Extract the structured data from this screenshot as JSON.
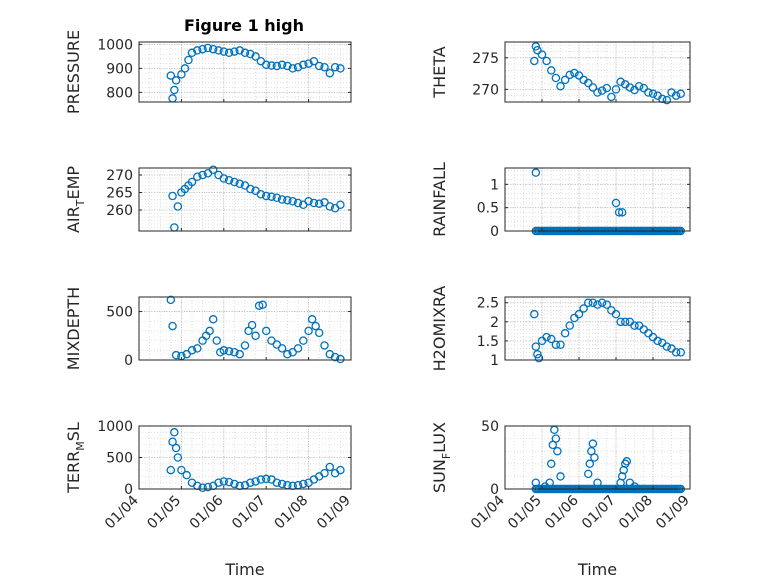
{
  "figure": {
    "title": "Figure 1 high",
    "marker_color": "#0072bd",
    "grid": "on (major and minor, dotted)"
  },
  "chart_data": [
    {
      "type": "scatter",
      "ylabel": "PRESSURE",
      "title": "Figure 1 high",
      "xlim": [
        "01/04",
        "01/09"
      ],
      "ylim": [
        760,
        1010
      ],
      "yticks": [
        800,
        900,
        1000
      ],
      "show_xticklabels": false,
      "x": [
        "01/04 18:00",
        "01/04 19:00",
        "01/04 20:00",
        "01/04 21:00",
        "01/05 00:00",
        "01/05 02:00",
        "01/05 04:00",
        "01/05 06:00",
        "01/05 09:00",
        "01/05 12:00",
        "01/05 15:00",
        "01/05 18:00",
        "01/05 21:00",
        "01/06 00:00",
        "01/06 03:00",
        "01/06 06:00",
        "01/06 09:00",
        "01/06 12:00",
        "01/06 15:00",
        "01/06 18:00",
        "01/06 21:00",
        "01/07 00:00",
        "01/07 03:00",
        "01/07 06:00",
        "01/07 09:00",
        "01/07 12:00",
        "01/07 15:00",
        "01/07 18:00",
        "01/07 21:00",
        "01/08 00:00",
        "01/08 03:00",
        "01/08 06:00",
        "01/08 09:00",
        "01/08 12:00",
        "01/08 15:00",
        "01/08 18:00"
      ],
      "y": [
        870,
        775,
        810,
        850,
        875,
        900,
        935,
        965,
        975,
        980,
        985,
        980,
        975,
        970,
        965,
        970,
        975,
        965,
        960,
        950,
        930,
        915,
        912,
        910,
        915,
        910,
        900,
        905,
        915,
        920,
        930,
        910,
        905,
        880,
        905,
        900
      ]
    },
    {
      "type": "scatter",
      "ylabel": "THETA",
      "xlim": [
        "01/04",
        "01/09"
      ],
      "ylim": [
        268,
        277.5
      ],
      "yticks": [
        270,
        275
      ],
      "show_xticklabels": false,
      "x": [
        "01/04 19:00",
        "01/04 20:00",
        "01/04 21:00",
        "01/05 00:00",
        "01/05 03:00",
        "01/05 06:00",
        "01/05 09:00",
        "01/05 12:00",
        "01/05 15:00",
        "01/05 18:00",
        "01/05 21:00",
        "01/06 00:00",
        "01/06 03:00",
        "01/06 06:00",
        "01/06 09:00",
        "01/06 12:00",
        "01/06 15:00",
        "01/06 18:00",
        "01/06 21:00",
        "01/07 00:00",
        "01/07 03:00",
        "01/07 06:00",
        "01/07 09:00",
        "01/07 12:00",
        "01/07 15:00",
        "01/07 18:00",
        "01/07 21:00",
        "01/08 00:00",
        "01/08 03:00",
        "01/08 06:00",
        "01/08 09:00",
        "01/08 12:00",
        "01/08 15:00",
        "01/08 18:00"
      ],
      "y": [
        274.5,
        276.8,
        276.2,
        275.5,
        274.5,
        273.0,
        271.8,
        270.5,
        271.5,
        272.3,
        272.6,
        272.2,
        271.5,
        271.0,
        270.3,
        269.5,
        269.8,
        270.2,
        268.8,
        270.0,
        271.2,
        270.8,
        270.3,
        269.9,
        270.5,
        270.2,
        269.5,
        269.3,
        269.0,
        268.5,
        268.3,
        269.5,
        269.0,
        269.3
      ]
    },
    {
      "type": "scatter",
      "ylabel": "AIR_TEMP",
      "xlim": [
        "01/04",
        "01/09"
      ],
      "ylim": [
        254,
        272
      ],
      "yticks": [
        260,
        265,
        270
      ],
      "show_xticklabels": false,
      "x": [
        "01/04 19:00",
        "01/04 20:00",
        "01/04 22:00",
        "01/05 00:00",
        "01/05 02:00",
        "01/05 04:00",
        "01/05 06:00",
        "01/05 09:00",
        "01/05 12:00",
        "01/05 15:00",
        "01/05 18:00",
        "01/05 21:00",
        "01/06 00:00",
        "01/06 03:00",
        "01/06 06:00",
        "01/06 09:00",
        "01/06 12:00",
        "01/06 15:00",
        "01/06 18:00",
        "01/06 21:00",
        "01/07 00:00",
        "01/07 03:00",
        "01/07 06:00",
        "01/07 09:00",
        "01/07 12:00",
        "01/07 15:00",
        "01/07 18:00",
        "01/07 21:00",
        "01/08 00:00",
        "01/08 03:00",
        "01/08 06:00",
        "01/08 09:00",
        "01/08 12:00",
        "01/08 15:00",
        "01/08 18:00"
      ],
      "y": [
        264,
        255,
        261,
        265,
        266,
        267,
        268,
        269.5,
        270,
        270.5,
        271.5,
        270,
        269,
        268.5,
        268,
        267.5,
        267,
        266,
        265.5,
        264.5,
        264,
        263.8,
        263.5,
        263,
        262.8,
        262.5,
        262,
        261.5,
        262.5,
        262,
        261.8,
        262.2,
        261,
        260.5,
        261.5
      ]
    },
    {
      "type": "scatter",
      "ylabel": "RAINFALL",
      "xlim": [
        "01/04",
        "01/09"
      ],
      "ylim": [
        0,
        1.35
      ],
      "yticks": [
        0,
        0.5,
        1
      ],
      "show_xticklabels": false,
      "x": [
        "01/04 20:00",
        "01/07 00:00",
        "01/07 02:00",
        "01/07 04:00"
      ],
      "y": [
        1.25,
        0.6,
        0.4,
        0.4
      ],
      "zero_run": [
        "01/04 20:00",
        "01/08 18:00"
      ]
    },
    {
      "type": "scatter",
      "ylabel": "MIXDEPTH",
      "xlim": [
        "01/04",
        "01/09"
      ],
      "ylim": [
        0,
        650
      ],
      "yticks": [
        0,
        500
      ],
      "show_xticklabels": false,
      "x": [
        "01/04 18:00",
        "01/04 19:00",
        "01/04 21:00",
        "01/05 00:00",
        "01/05 03:00",
        "01/05 06:00",
        "01/05 09:00",
        "01/05 12:00",
        "01/05 14:00",
        "01/05 16:00",
        "01/05 18:00",
        "01/05 20:00",
        "01/05 22:00",
        "01/06 00:00",
        "01/06 03:00",
        "01/06 06:00",
        "01/06 09:00",
        "01/06 12:00",
        "01/06 14:00",
        "01/06 16:00",
        "01/06 18:00",
        "01/06 20:00",
        "01/06 22:00",
        "01/07 00:00",
        "01/07 03:00",
        "01/07 06:00",
        "01/07 09:00",
        "01/07 12:00",
        "01/07 15:00",
        "01/07 18:00",
        "01/07 21:00",
        "01/08 00:00",
        "01/08 02:00",
        "01/08 04:00",
        "01/08 06:00",
        "01/08 09:00",
        "01/08 12:00",
        "01/08 15:00",
        "01/08 18:00"
      ],
      "y": [
        620,
        350,
        50,
        40,
        60,
        100,
        120,
        200,
        250,
        300,
        420,
        200,
        80,
        100,
        90,
        80,
        60,
        150,
        300,
        360,
        250,
        560,
        570,
        300,
        200,
        160,
        120,
        60,
        80,
        120,
        200,
        300,
        420,
        350,
        280,
        150,
        60,
        30,
        10
      ]
    },
    {
      "type": "scatter",
      "ylabel": "H2OMIXRA",
      "xlim": [
        "01/04",
        "01/09"
      ],
      "ylim": [
        1,
        2.65
      ],
      "yticks": [
        1,
        1.5,
        2,
        2.5
      ],
      "show_xticklabels": false,
      "x": [
        "01/04 19:00",
        "01/04 20:00",
        "01/04 21:00",
        "01/04 22:00",
        "01/05 00:00",
        "01/05 03:00",
        "01/05 06:00",
        "01/05 09:00",
        "01/05 12:00",
        "01/05 15:00",
        "01/05 18:00",
        "01/05 21:00",
        "01/06 00:00",
        "01/06 03:00",
        "01/06 06:00",
        "01/06 09:00",
        "01/06 12:00",
        "01/06 15:00",
        "01/06 18:00",
        "01/06 21:00",
        "01/07 00:00",
        "01/07 03:00",
        "01/07 06:00",
        "01/07 09:00",
        "01/07 12:00",
        "01/07 15:00",
        "01/07 18:00",
        "01/07 21:00",
        "01/08 00:00",
        "01/08 03:00",
        "01/08 06:00",
        "01/08 09:00",
        "01/08 12:00",
        "01/08 15:00",
        "01/08 18:00"
      ],
      "y": [
        2.2,
        1.35,
        1.15,
        1.05,
        1.5,
        1.6,
        1.55,
        1.4,
        1.4,
        1.7,
        1.9,
        2.1,
        2.2,
        2.35,
        2.5,
        2.5,
        2.45,
        2.5,
        2.45,
        2.3,
        2.2,
        2.0,
        2.0,
        2.0,
        1.9,
        1.9,
        1.8,
        1.7,
        1.6,
        1.5,
        1.45,
        1.35,
        1.3,
        1.2,
        1.2
      ]
    },
    {
      "type": "scatter",
      "ylabel": "TERR_MSL",
      "xlim": [
        "01/04",
        "01/09"
      ],
      "ylim": [
        0,
        1000
      ],
      "yticks": [
        0,
        500,
        1000
      ],
      "xticks": [
        "01/04",
        "01/05",
        "01/06",
        "01/07",
        "01/08",
        "01/09"
      ],
      "xlabel": "Time",
      "show_xticklabels": true,
      "x": [
        "01/04 18:00",
        "01/04 19:00",
        "01/04 20:00",
        "01/04 21:00",
        "01/04 22:00",
        "01/05 00:00",
        "01/05 03:00",
        "01/05 06:00",
        "01/05 09:00",
        "01/05 12:00",
        "01/05 15:00",
        "01/05 18:00",
        "01/05 21:00",
        "01/06 00:00",
        "01/06 03:00",
        "01/06 06:00",
        "01/06 09:00",
        "01/06 12:00",
        "01/06 15:00",
        "01/06 18:00",
        "01/06 21:00",
        "01/07 00:00",
        "01/07 03:00",
        "01/07 06:00",
        "01/07 09:00",
        "01/07 12:00",
        "01/07 15:00",
        "01/07 18:00",
        "01/07 21:00",
        "01/08 00:00",
        "01/08 03:00",
        "01/08 06:00",
        "01/08 09:00",
        "01/08 12:00",
        "01/08 15:00",
        "01/08 18:00"
      ],
      "y": [
        300,
        750,
        900,
        650,
        500,
        300,
        220,
        100,
        50,
        20,
        30,
        50,
        100,
        120,
        110,
        80,
        50,
        60,
        100,
        120,
        150,
        160,
        150,
        100,
        80,
        60,
        50,
        60,
        80,
        100,
        150,
        200,
        250,
        350,
        250,
        300
      ]
    },
    {
      "type": "scatter",
      "ylabel": "SUN_FLUX",
      "xlim": [
        "01/04",
        "01/09"
      ],
      "ylim": [
        0,
        50
      ],
      "yticks": [
        0,
        50
      ],
      "xticks": [
        "01/04",
        "01/05",
        "01/06",
        "01/07",
        "01/08",
        "01/09"
      ],
      "xlabel": "Time",
      "show_xticklabels": true,
      "x": [
        "01/04 20:00",
        "01/05 02:00",
        "01/05 05:00",
        "01/05 06:00",
        "01/05 07:00",
        "01/05 08:00",
        "01/05 09:00",
        "01/05 10:00",
        "01/05 12:00",
        "01/06 06:00",
        "01/06 07:00",
        "01/06 08:00",
        "01/06 09:00",
        "01/06 10:00",
        "01/06 12:00",
        "01/07 03:00",
        "01/07 04:00",
        "01/07 05:00",
        "01/07 06:00",
        "01/07 07:00",
        "01/07 09:00",
        "01/07 12:00",
        "01/07 15:00",
        "01/07 18:00"
      ],
      "y": [
        5,
        2,
        5,
        20,
        35,
        47,
        40,
        30,
        10,
        12,
        20,
        30,
        36,
        25,
        5,
        5,
        10,
        15,
        20,
        22,
        5,
        2,
        0,
        0
      ],
      "zero_run": [
        "01/04 20:00",
        "01/08 18:00"
      ]
    }
  ]
}
